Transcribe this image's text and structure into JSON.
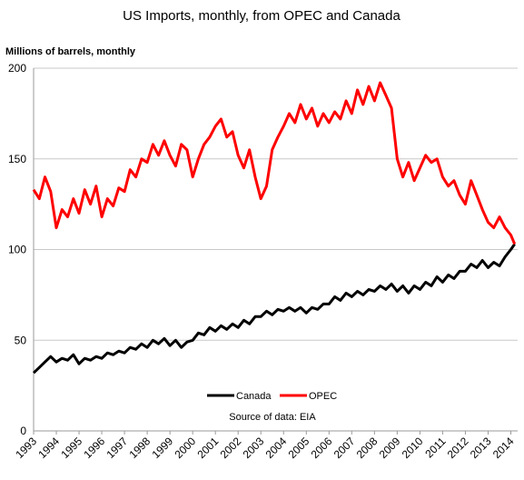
{
  "chart_data": {
    "type": "line",
    "title": "US Imports, monthly, from OPEC and Canada",
    "ylabel": "Millions of barrels, monthly",
    "xlabel": "",
    "source": "Source of data: EIA",
    "ylim": [
      0,
      200
    ],
    "xlim": [
      1993,
      2014.3
    ],
    "y_ticks": [
      "0",
      "50",
      "100",
      "150",
      "200"
    ],
    "x_ticks": [
      "1993",
      "1994",
      "1995",
      "1996",
      "1997",
      "1998",
      "1999",
      "2000",
      "2001",
      "2002",
      "2003",
      "2004",
      "2005",
      "2006",
      "2007",
      "2008",
      "2009",
      "2010",
      "2011",
      "2012",
      "2013",
      "2014"
    ],
    "grid": "horizontal",
    "legend": "bottom-center",
    "series": [
      {
        "name": "Canada",
        "color": "#000000",
        "points": [
          [
            1993.0,
            32
          ],
          [
            1993.25,
            35
          ],
          [
            1993.5,
            38
          ],
          [
            1993.75,
            41
          ],
          [
            1994.0,
            38
          ],
          [
            1994.25,
            40
          ],
          [
            1994.5,
            39
          ],
          [
            1994.75,
            42
          ],
          [
            1995.0,
            37
          ],
          [
            1995.25,
            40
          ],
          [
            1995.5,
            39
          ],
          [
            1995.75,
            41
          ],
          [
            1996.0,
            40
          ],
          [
            1996.25,
            43
          ],
          [
            1996.5,
            42
          ],
          [
            1996.75,
            44
          ],
          [
            1997.0,
            43
          ],
          [
            1997.25,
            46
          ],
          [
            1997.5,
            45
          ],
          [
            1997.75,
            48
          ],
          [
            1998.0,
            46
          ],
          [
            1998.25,
            50
          ],
          [
            1998.5,
            48
          ],
          [
            1998.75,
            51
          ],
          [
            1999.0,
            47
          ],
          [
            1999.25,
            50
          ],
          [
            1999.5,
            46
          ],
          [
            1999.75,
            49
          ],
          [
            2000.0,
            50
          ],
          [
            2000.25,
            54
          ],
          [
            2000.5,
            53
          ],
          [
            2000.75,
            57
          ],
          [
            2001.0,
            55
          ],
          [
            2001.25,
            58
          ],
          [
            2001.5,
            56
          ],
          [
            2001.75,
            59
          ],
          [
            2002.0,
            57
          ],
          [
            2002.25,
            61
          ],
          [
            2002.5,
            59
          ],
          [
            2002.75,
            63
          ],
          [
            2003.0,
            63
          ],
          [
            2003.25,
            66
          ],
          [
            2003.5,
            64
          ],
          [
            2003.75,
            67
          ],
          [
            2004.0,
            66
          ],
          [
            2004.25,
            68
          ],
          [
            2004.5,
            66
          ],
          [
            2004.75,
            68
          ],
          [
            2005.0,
            65
          ],
          [
            2005.25,
            68
          ],
          [
            2005.5,
            67
          ],
          [
            2005.75,
            70
          ],
          [
            2006.0,
            70
          ],
          [
            2006.25,
            74
          ],
          [
            2006.5,
            72
          ],
          [
            2006.75,
            76
          ],
          [
            2007.0,
            74
          ],
          [
            2007.25,
            77
          ],
          [
            2007.5,
            75
          ],
          [
            2007.75,
            78
          ],
          [
            2008.0,
            77
          ],
          [
            2008.25,
            80
          ],
          [
            2008.5,
            78
          ],
          [
            2008.75,
            81
          ],
          [
            2009.0,
            77
          ],
          [
            2009.25,
            80
          ],
          [
            2009.5,
            76
          ],
          [
            2009.75,
            80
          ],
          [
            2010.0,
            78
          ],
          [
            2010.25,
            82
          ],
          [
            2010.5,
            80
          ],
          [
            2010.75,
            85
          ],
          [
            2011.0,
            82
          ],
          [
            2011.25,
            86
          ],
          [
            2011.5,
            84
          ],
          [
            2011.75,
            88
          ],
          [
            2012.0,
            88
          ],
          [
            2012.25,
            92
          ],
          [
            2012.5,
            90
          ],
          [
            2012.75,
            94
          ],
          [
            2013.0,
            90
          ],
          [
            2013.25,
            93
          ],
          [
            2013.5,
            91
          ],
          [
            2013.75,
            96
          ],
          [
            2014.0,
            100
          ],
          [
            2014.17,
            103
          ]
        ]
      },
      {
        "name": "OPEC",
        "color": "#ff0000",
        "points": [
          [
            1993.0,
            133
          ],
          [
            1993.25,
            128
          ],
          [
            1993.5,
            140
          ],
          [
            1993.75,
            132
          ],
          [
            1994.0,
            112
          ],
          [
            1994.25,
            122
          ],
          [
            1994.5,
            118
          ],
          [
            1994.75,
            128
          ],
          [
            1995.0,
            120
          ],
          [
            1995.25,
            133
          ],
          [
            1995.5,
            125
          ],
          [
            1995.75,
            135
          ],
          [
            1996.0,
            118
          ],
          [
            1996.25,
            128
          ],
          [
            1996.5,
            124
          ],
          [
            1996.75,
            134
          ],
          [
            1997.0,
            132
          ],
          [
            1997.25,
            144
          ],
          [
            1997.5,
            140
          ],
          [
            1997.75,
            150
          ],
          [
            1998.0,
            148
          ],
          [
            1998.25,
            158
          ],
          [
            1998.5,
            152
          ],
          [
            1998.75,
            160
          ],
          [
            1999.0,
            152
          ],
          [
            1999.25,
            146
          ],
          [
            1999.5,
            158
          ],
          [
            1999.75,
            155
          ],
          [
            2000.0,
            140
          ],
          [
            2000.25,
            150
          ],
          [
            2000.5,
            158
          ],
          [
            2000.75,
            162
          ],
          [
            2001.0,
            168
          ],
          [
            2001.25,
            172
          ],
          [
            2001.5,
            162
          ],
          [
            2001.75,
            165
          ],
          [
            2002.0,
            152
          ],
          [
            2002.25,
            145
          ],
          [
            2002.5,
            155
          ],
          [
            2002.75,
            140
          ],
          [
            2003.0,
            128
          ],
          [
            2003.25,
            135
          ],
          [
            2003.5,
            155
          ],
          [
            2003.75,
            162
          ],
          [
            2004.0,
            168
          ],
          [
            2004.25,
            175
          ],
          [
            2004.5,
            170
          ],
          [
            2004.75,
            180
          ],
          [
            2005.0,
            172
          ],
          [
            2005.25,
            178
          ],
          [
            2005.5,
            168
          ],
          [
            2005.75,
            175
          ],
          [
            2006.0,
            170
          ],
          [
            2006.25,
            176
          ],
          [
            2006.5,
            172
          ],
          [
            2006.75,
            182
          ],
          [
            2007.0,
            175
          ],
          [
            2007.25,
            188
          ],
          [
            2007.5,
            180
          ],
          [
            2007.75,
            190
          ],
          [
            2008.0,
            182
          ],
          [
            2008.25,
            192
          ],
          [
            2008.5,
            185
          ],
          [
            2008.75,
            178
          ],
          [
            2009.0,
            150
          ],
          [
            2009.25,
            140
          ],
          [
            2009.5,
            148
          ],
          [
            2009.75,
            138
          ],
          [
            2010.0,
            145
          ],
          [
            2010.25,
            152
          ],
          [
            2010.5,
            148
          ],
          [
            2010.75,
            150
          ],
          [
            2011.0,
            140
          ],
          [
            2011.25,
            135
          ],
          [
            2011.5,
            138
          ],
          [
            2011.75,
            130
          ],
          [
            2012.0,
            125
          ],
          [
            2012.25,
            138
          ],
          [
            2012.5,
            130
          ],
          [
            2012.75,
            122
          ],
          [
            2013.0,
            115
          ],
          [
            2013.25,
            112
          ],
          [
            2013.5,
            118
          ],
          [
            2013.75,
            112
          ],
          [
            2014.0,
            108
          ],
          [
            2014.17,
            103
          ]
        ]
      }
    ]
  }
}
